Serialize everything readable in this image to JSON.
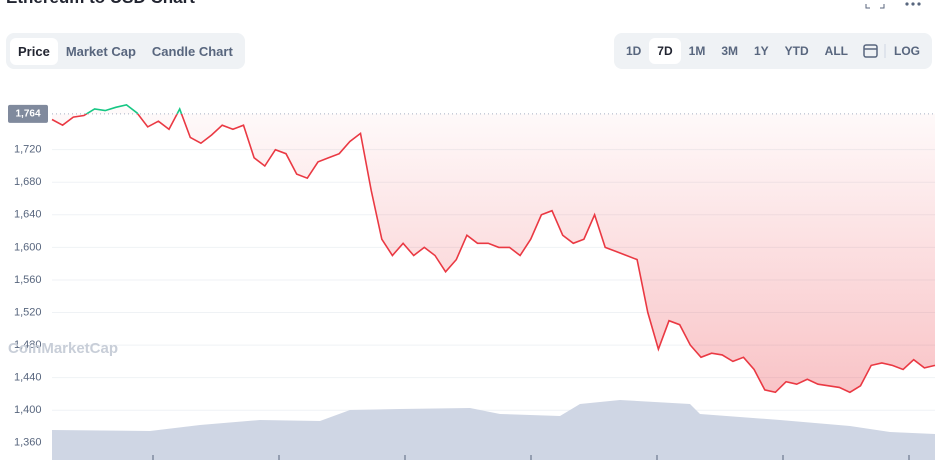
{
  "chart_data": {
    "type": "line",
    "title": "Ethereum to USD Chart",
    "tabs": [
      "Price",
      "Market Cap",
      "Candle Chart"
    ],
    "ranges": [
      "1D",
      "7D",
      "1M",
      "3M",
      "1Y",
      "YTD",
      "ALL"
    ],
    "scale_button": "LOG",
    "watermark": "CoinMarketCap",
    "reference": {
      "value": 1764,
      "label": "1,764"
    },
    "above_color": "#16c784",
    "series": [
      {
        "name": "Price",
        "color": "#ea3943",
        "values": [
          1757,
          1750,
          1760,
          1762,
          1770,
          1768,
          1772,
          1775,
          1765,
          1748,
          1755,
          1745,
          1770,
          1735,
          1728,
          1738,
          1750,
          1745,
          1750,
          1710,
          1700,
          1720,
          1715,
          1690,
          1685,
          1705,
          1710,
          1715,
          1730,
          1740,
          1670,
          1610,
          1590,
          1605,
          1590,
          1600,
          1590,
          1570,
          1585,
          1615,
          1605,
          1605,
          1600,
          1600,
          1590,
          1610,
          1640,
          1645,
          1615,
          1605,
          1610,
          1640,
          1600,
          1595,
          1590,
          1585,
          1520,
          1475,
          1510,
          1505,
          1480,
          1465,
          1470,
          1468,
          1460,
          1465,
          1450,
          1425,
          1422,
          1435,
          1432,
          1438,
          1432,
          1430,
          1428,
          1422,
          1430,
          1455,
          1458,
          1455,
          1450,
          1462,
          1452,
          1455
        ]
      }
    ],
    "ylim": [
      1345,
      1781
    ],
    "yticks": [
      {
        "value": 1360,
        "label": "1,360"
      },
      {
        "value": 1400,
        "label": "1,400"
      },
      {
        "value": 1440,
        "label": "1,440"
      },
      {
        "value": 1480,
        "label": "1,480"
      },
      {
        "value": 1520,
        "label": "1,520"
      },
      {
        "value": 1560,
        "label": "1,560"
      },
      {
        "value": 1600,
        "label": "1,600"
      },
      {
        "value": 1640,
        "label": "1,640"
      },
      {
        "value": 1680,
        "label": "1,680"
      },
      {
        "value": 1720,
        "label": "1,720"
      }
    ],
    "grid": true
  }
}
